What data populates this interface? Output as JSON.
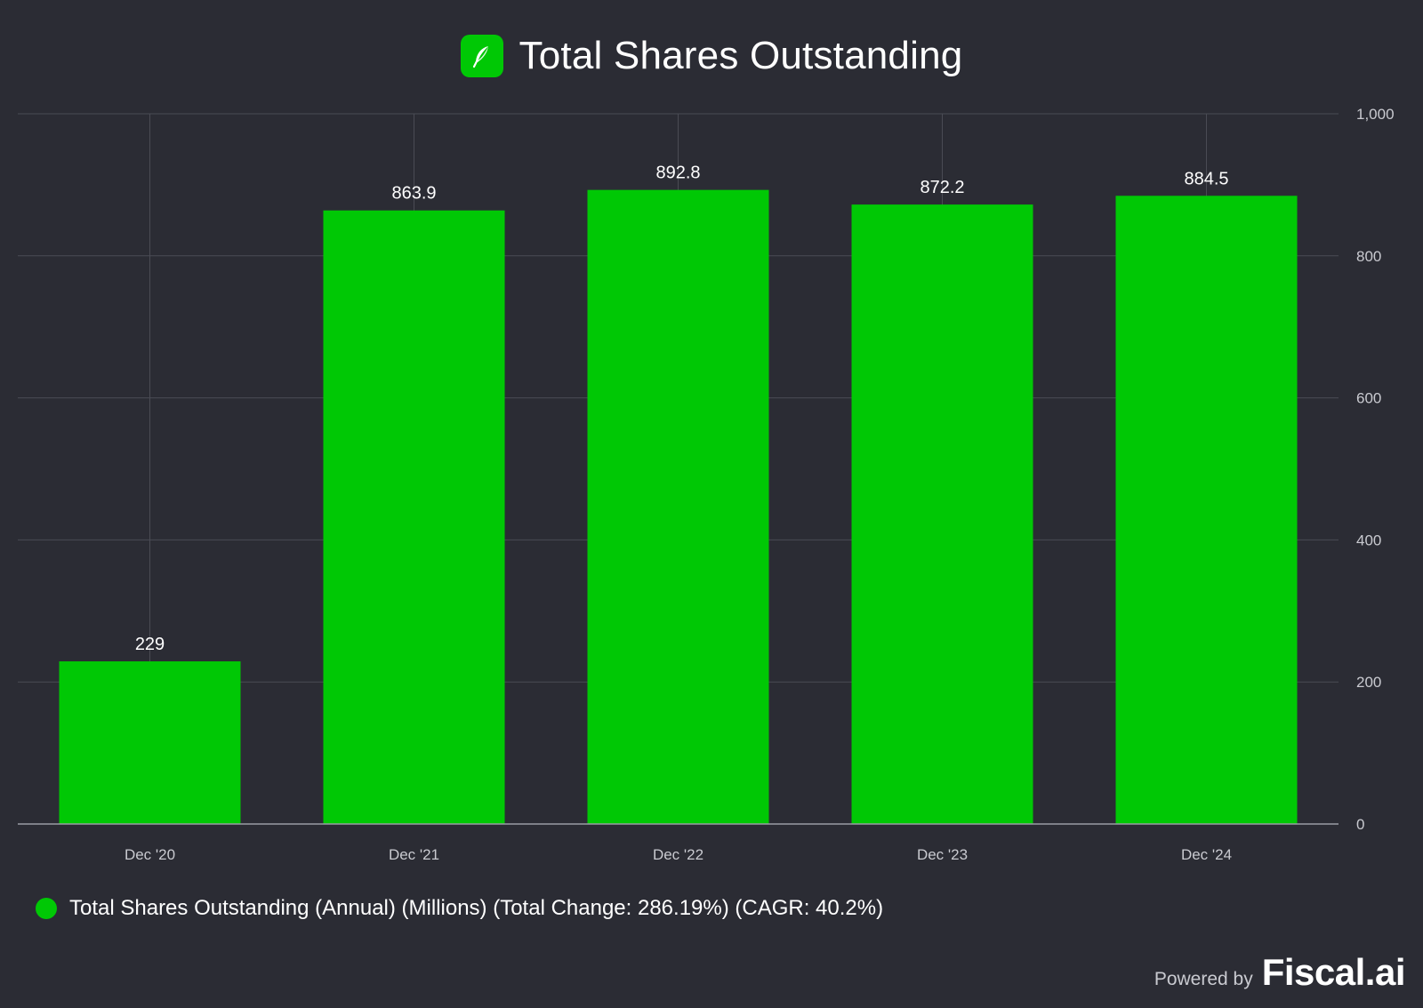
{
  "header": {
    "title": "Total Shares Outstanding",
    "logo_icon": "feather-icon"
  },
  "legend": {
    "label": "Total Shares Outstanding (Annual) (Millions) (Total Change: 286.19%) (CAGR: 40.2%)"
  },
  "footer": {
    "powered_by": "Powered by",
    "brand": "Fiscal.ai"
  },
  "colors": {
    "background": "#2b2c34",
    "bar": "#00c805",
    "grid": "#4a4b54",
    "axis_text": "#c9cad0",
    "label_text": "#ffffff"
  },
  "chart_data": {
    "type": "bar",
    "title": "Total Shares Outstanding",
    "categories": [
      "Dec '20",
      "Dec '21",
      "Dec '22",
      "Dec '23",
      "Dec '24"
    ],
    "series": [
      {
        "name": "Total Shares Outstanding (Annual) (Millions) (Total Change: 286.19%) (CAGR: 40.2%)",
        "values": [
          229,
          863.9,
          892.8,
          872.2,
          884.5
        ]
      }
    ],
    "value_labels": [
      "229",
      "863.9",
      "892.8",
      "872.2",
      "884.5"
    ],
    "ylim": [
      0,
      1000
    ],
    "yticks": [
      0,
      200,
      400,
      600,
      800,
      1000
    ],
    "ytick_labels": [
      "0",
      "200",
      "400",
      "600",
      "800",
      "1,000"
    ],
    "y_axis_side": "right",
    "grid": true,
    "legend_position": "bottom-left"
  }
}
